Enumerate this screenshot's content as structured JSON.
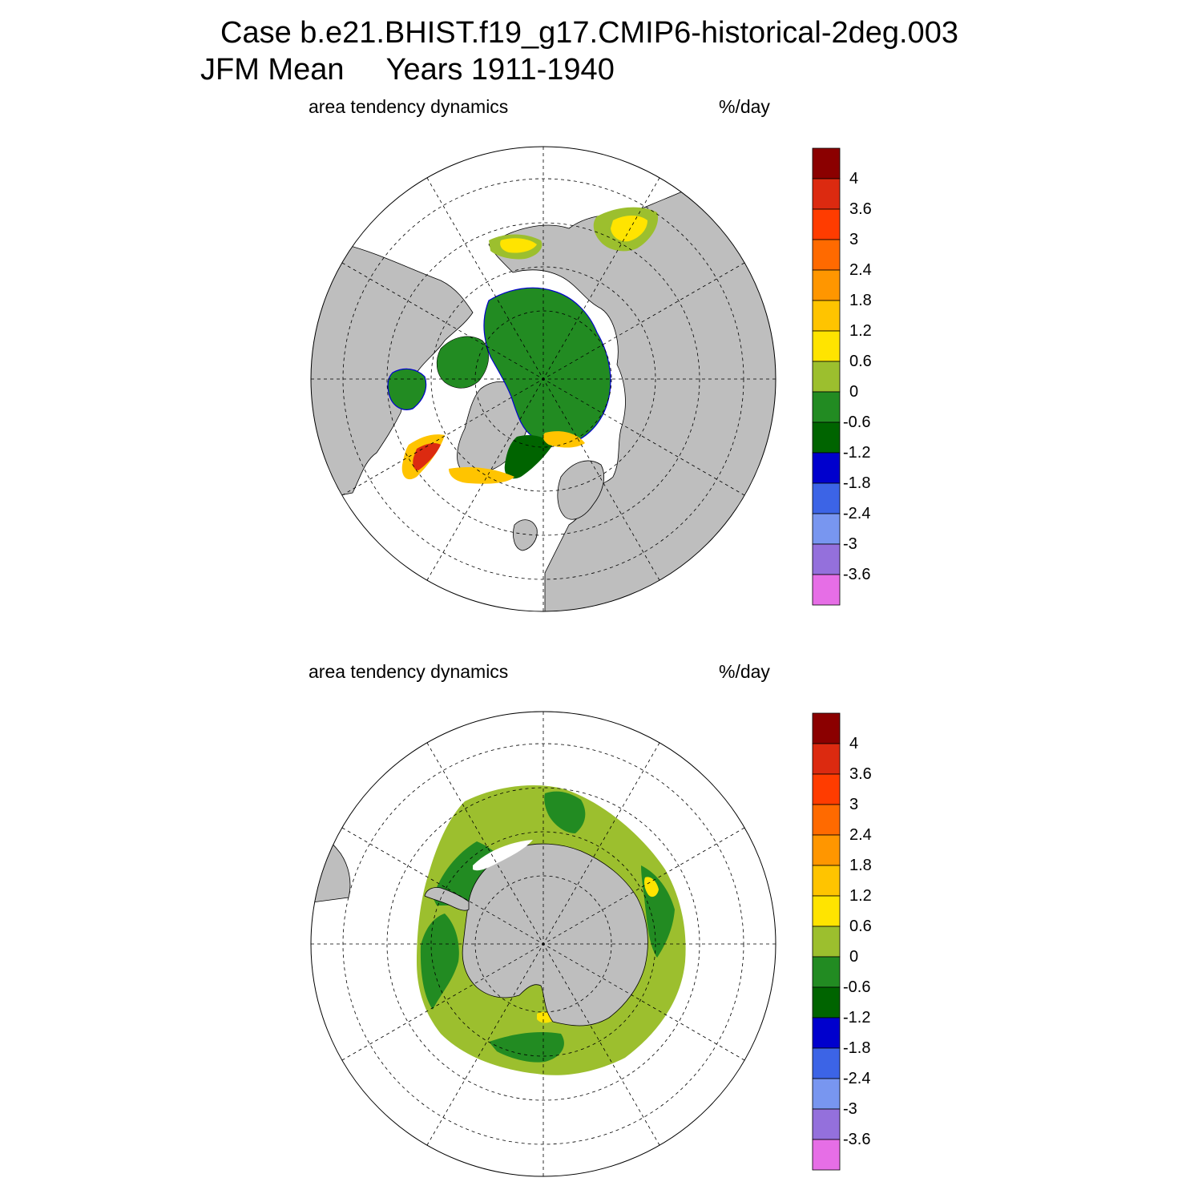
{
  "title_line1": "Case b.e21.BHIST.f19_g17.CMIP6-historical-2deg.003",
  "title_line2": "JFM Mean     Years 1911-1940",
  "panels": [
    {
      "left_label": "area tendency dynamics",
      "right_label": "%/day",
      "hemisphere": "north"
    },
    {
      "left_label": "area tendency dynamics",
      "right_label": "%/day",
      "hemisphere": "south"
    }
  ],
  "colorbar": {
    "labels": [
      "4",
      "3.6",
      "3",
      "2.4",
      "1.8",
      "1.2",
      "0.6",
      "0",
      "-0.6",
      "-1.2",
      "-1.8",
      "-2.4",
      "-3",
      "-3.6"
    ],
    "colors_top_to_bottom": [
      "#8b0000",
      "#dc2a10",
      "#ff3c00",
      "#ff6a00",
      "#ff9600",
      "#ffc400",
      "#ffe400",
      "#9cbf2e",
      "#228b22",
      "#006400",
      "#0000cd",
      "#3c64e6",
      "#7896f0",
      "#9470dc",
      "#e66ee6"
    ]
  },
  "colors": {
    "land": "#bebebe",
    "ice_positive": "#9cbf2e",
    "ice_negative": "#228b22",
    "ice_strong_negative": "#006400",
    "edge_warm": "#ffc400",
    "edge_hot": "#dc2a10"
  }
}
